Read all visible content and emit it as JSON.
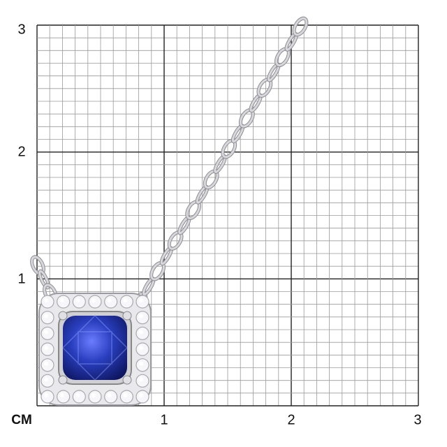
{
  "scale": {
    "unit_label": "CM",
    "x_ticks": [
      "1",
      "2",
      "3"
    ],
    "y_ticks": [
      "1",
      "2",
      "3"
    ],
    "range_cm": [
      0,
      3
    ],
    "minor_division_mm": 1
  },
  "product": {
    "type": "pendant necklace",
    "stone_color": "#2a3fc0",
    "metal_color": "#d8d8dc"
  },
  "colors": {
    "grid_minor": "#9a9a9a",
    "grid_major": "#222222",
    "background": "#ffffff"
  }
}
